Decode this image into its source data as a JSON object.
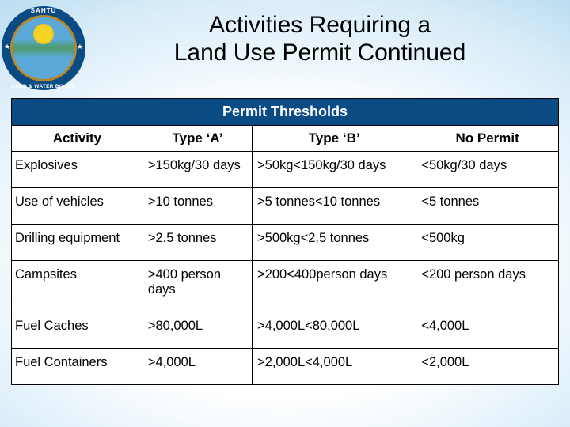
{
  "title": {
    "line1": "Activities Requiring a",
    "line2": "Land Use Permit Continued"
  },
  "logo": {
    "top_text": "SAHTU",
    "bottom_text": "LAND & WATER BOARD",
    "circle_color": "#0a4b84",
    "inner_border_color": "#b8862b"
  },
  "table": {
    "header_bg": "#0a4b84",
    "header_fg": "#ffffff",
    "title": "Permit Thresholds",
    "columns": [
      "Activity",
      "Type ‘A’",
      "Type ‘B’",
      "No Permit"
    ],
    "rows": [
      {
        "activity": "Explosives",
        "a": ">150kg/30 days",
        "b": ">50kg<150kg/30 days",
        "none": "<50kg/30 days"
      },
      {
        "activity": "Use of vehicles",
        "a": ">10 tonnes",
        "b": ">5 tonnes<10 tonnes",
        "none": "<5 tonnes"
      },
      {
        "activity": "Drilling equipment",
        "a": ">2.5 tonnes",
        "b": ">500kg<2.5 tonnes",
        "none": "<500kg"
      },
      {
        "activity": "Campsites",
        "a": ">400 person days",
        "b": ">200<400person days",
        "none": "<200 person days"
      },
      {
        "activity": "Fuel Caches",
        "a": ">80,000L",
        "b": ">4,000L<80,000L",
        "none": "<4,000L"
      },
      {
        "activity": "Fuel Containers",
        "a": ">4,000L",
        "b": ">2,000L<4,000L",
        "none": "<2,000L"
      }
    ]
  }
}
